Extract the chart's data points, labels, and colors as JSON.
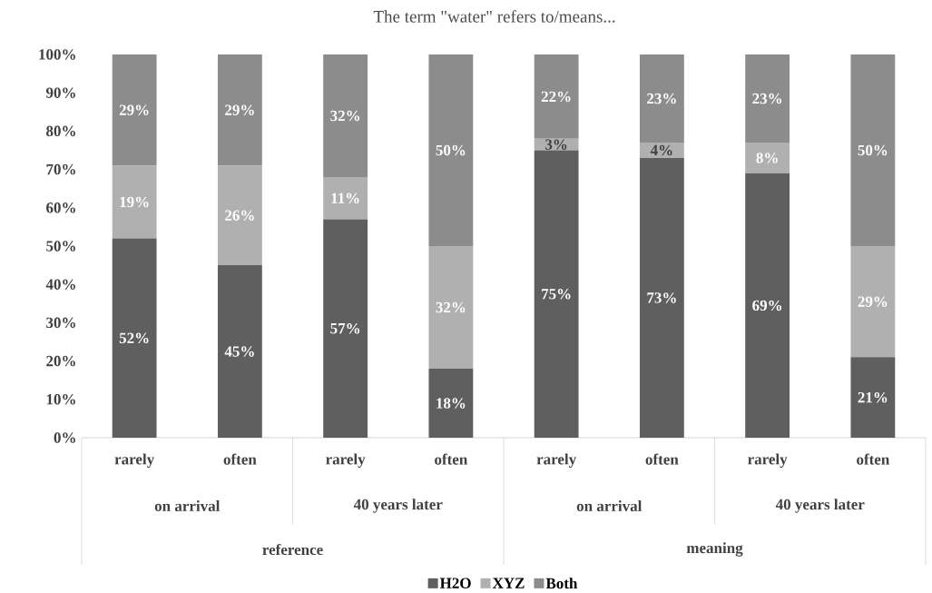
{
  "chart_data": {
    "type": "bar",
    "stacked": true,
    "title": "The term \"water\" refers to/means...",
    "categories": [
      "rarely",
      "often",
      "rarely",
      "often",
      "rarely",
      "often",
      "rarely",
      "often"
    ],
    "series": [
      {
        "name": "H2O",
        "color": "#5f5f5f",
        "values": [
          52,
          45,
          57,
          18,
          75,
          73,
          69,
          21
        ],
        "value_labels": [
          "52%",
          "45%",
          "57%",
          "18%",
          "75%",
          "73%",
          "69%",
          "21%"
        ]
      },
      {
        "name": "XYZ",
        "color": "#b0b0b0",
        "values": [
          19,
          26,
          11,
          32,
          3,
          4,
          8,
          29
        ],
        "value_labels": [
          "19%",
          "26%",
          "11%",
          "32%",
          "3%",
          "4%",
          "8%",
          "29%"
        ]
      },
      {
        "name": "Both",
        "color": "#8c8c8c",
        "values": [
          29,
          29,
          32,
          50,
          22,
          23,
          23,
          50
        ],
        "value_labels": [
          "29%",
          "29%",
          "32%",
          "50%",
          "22%",
          "23%",
          "23%",
          "50%"
        ]
      }
    ],
    "ylim": [
      0,
      100
    ],
    "yticks": [
      {
        "value": 0,
        "label": "0%"
      },
      {
        "value": 10,
        "label": "10%"
      },
      {
        "value": 20,
        "label": "20%"
      },
      {
        "value": 30,
        "label": "30%"
      },
      {
        "value": 40,
        "label": "40%"
      },
      {
        "value": 50,
        "label": "50%"
      },
      {
        "value": 60,
        "label": "60%"
      },
      {
        "value": 70,
        "label": "70%"
      },
      {
        "value": 80,
        "label": "80%"
      },
      {
        "value": 90,
        "label": "90%"
      },
      {
        "value": 100,
        "label": "100%"
      }
    ],
    "annotations": [
      "on arrival",
      "40 years later",
      "on arrival",
      "40 years later",
      "reference",
      "meaning"
    ],
    "legend": "bottom"
  }
}
